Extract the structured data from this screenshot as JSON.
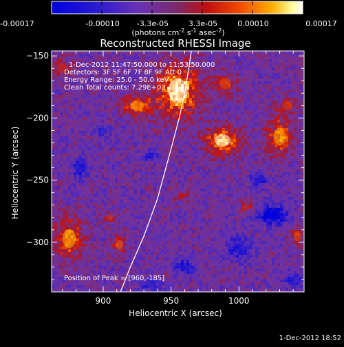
{
  "colorbar": {
    "ticks": [
      "-0.00017",
      "-0.00010",
      "-3.3e-05",
      "3.3e-05",
      "0.00010",
      "0.00017"
    ],
    "unit_label": "(photons cm",
    "unit_sup1": "-2",
    "unit_mid": " s",
    "unit_sup2": "-1",
    "unit_end": " asec",
    "unit_sup3": "-2",
    "unit_close": ")"
  },
  "image_info": {
    "time_range": "1-Dec-2012 11:47:50.000 to 11:53:50.000",
    "detectors": "Detectors: 3F 5F 6F 7F 8F 9F Att 0",
    "energy_range": "Energy Range: 25.0 - 50.0 keV",
    "clean": "Clean     Total counts: 7.29E+03",
    "peak": "Position of Peak = [960,-185]"
  },
  "footer": {
    "timestamp": "1-Dec-2012 18:52"
  },
  "chart_data": {
    "type": "heatmap",
    "title": "Reconstructed RHESSI Image",
    "xlabel": "Heliocentric X (arcsec)",
    "ylabel": "Heliocentric Y (arcsec)",
    "xlim": [
      862,
      1048
    ],
    "ylim": [
      -340,
      -146
    ],
    "xticks": [
      900,
      950,
      1000
    ],
    "yticks": [
      -150,
      -200,
      -250,
      -300
    ],
    "colorbar_range": [
      -0.00017,
      0.00017
    ],
    "peak_position": [
      960,
      -185
    ],
    "limb": [
      [
        912,
        -342
      ],
      [
        920,
        -320
      ],
      [
        930,
        -295
      ],
      [
        940,
        -265
      ],
      [
        950,
        -225
      ],
      [
        956,
        -200
      ],
      [
        960,
        -180
      ],
      [
        963,
        -160
      ],
      [
        965,
        -146
      ]
    ],
    "hot_spots": [
      {
        "x": 955,
        "y": -178,
        "rx": 16,
        "ry": 22,
        "value": 0.00017
      },
      {
        "x": 925,
        "y": -190,
        "rx": 12,
        "ry": 9,
        "value": 0.00011
      },
      {
        "x": 988,
        "y": -218,
        "rx": 13,
        "ry": 11,
        "value": 0.00015
      },
      {
        "x": 1030,
        "y": -215,
        "rx": 10,
        "ry": 16,
        "value": 0.00012
      },
      {
        "x": 990,
        "y": -172,
        "rx": 9,
        "ry": 10,
        "value": 8e-05
      },
      {
        "x": 875,
        "y": -297,
        "rx": 11,
        "ry": 17,
        "value": 0.00012
      },
      {
        "x": 912,
        "y": -302,
        "rx": 6,
        "ry": 8,
        "value": 9e-05
      },
      {
        "x": 905,
        "y": -280,
        "rx": 5,
        "ry": 5,
        "value": 7e-05
      },
      {
        "x": 870,
        "y": -160,
        "rx": 8,
        "ry": 9,
        "value": 6e-05
      },
      {
        "x": 1005,
        "y": -272,
        "rx": 6,
        "ry": 5,
        "value": 6e-05
      },
      {
        "x": 1043,
        "y": -295,
        "rx": 6,
        "ry": 9,
        "value": 8e-05
      },
      {
        "x": 1036,
        "y": -190,
        "rx": 8,
        "ry": 8,
        "value": 7e-05
      },
      {
        "x": 958,
        "y": -262,
        "rx": 6,
        "ry": 5,
        "value": 5e-05
      }
    ],
    "cold_spots": [
      {
        "x": 1025,
        "y": -278,
        "rx": 10,
        "ry": 8,
        "value": -0.00017
      },
      {
        "x": 960,
        "y": -320,
        "rx": 7,
        "ry": 6,
        "value": -0.00012
      },
      {
        "x": 1000,
        "y": -305,
        "rx": 9,
        "ry": 9,
        "value": -0.00011
      },
      {
        "x": 935,
        "y": -230,
        "rx": 5,
        "ry": 4,
        "value": -0.0001
      },
      {
        "x": 883,
        "y": -240,
        "rx": 6,
        "ry": 8,
        "value": -0.0001
      },
      {
        "x": 1015,
        "y": -250,
        "rx": 6,
        "ry": 6,
        "value": -0.00011
      },
      {
        "x": 900,
        "y": -210,
        "rx": 5,
        "ry": 5,
        "value": -9e-05
      },
      {
        "x": 935,
        "y": -335,
        "rx": 8,
        "ry": 5,
        "value": -9e-05
      },
      {
        "x": 1040,
        "y": -330,
        "rx": 7,
        "ry": 6,
        "value": -0.0001
      }
    ]
  },
  "colors": {
    "background": "#000000",
    "colormap": [
      "#0000d0",
      "#5a2bc8",
      "#7a3aa8",
      "#8a3a7a",
      "#b51010",
      "#e54400",
      "#ff9a00",
      "#ffff7a",
      "#ffffff"
    ]
  }
}
